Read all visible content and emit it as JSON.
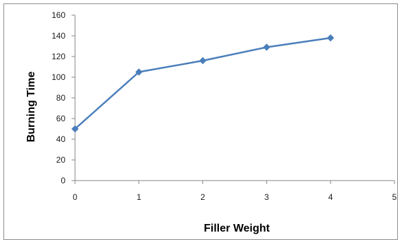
{
  "chart_data": {
    "type": "line",
    "title": "",
    "xlabel": "Filler Weight",
    "ylabel": "Burning Time",
    "x": [
      0,
      1,
      2,
      3,
      4
    ],
    "series": [
      {
        "values": [
          50,
          105,
          116,
          129,
          138
        ]
      }
    ],
    "xlim": [
      0,
      5
    ],
    "ylim": [
      0,
      160
    ],
    "x_ticks": [
      "0",
      "1",
      "2",
      "3",
      "4",
      "5"
    ],
    "y_ticks": [
      "0",
      "20",
      "40",
      "60",
      "80",
      "100",
      "120",
      "140",
      "160"
    ],
    "grid": false,
    "legend": "none",
    "colors": {
      "series": "#4a7ebb",
      "axis": "#868686"
    }
  }
}
